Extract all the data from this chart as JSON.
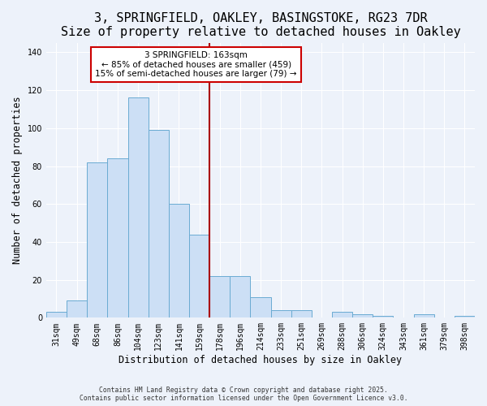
{
  "title": "3, SPRINGFIELD, OAKLEY, BASINGSTOKE, RG23 7DR",
  "subtitle": "Size of property relative to detached houses in Oakley",
  "xlabel": "Distribution of detached houses by size in Oakley",
  "ylabel": "Number of detached properties",
  "bar_labels": [
    "31sqm",
    "49sqm",
    "68sqm",
    "86sqm",
    "104sqm",
    "123sqm",
    "141sqm",
    "159sqm",
    "178sqm",
    "196sqm",
    "214sqm",
    "233sqm",
    "251sqm",
    "269sqm",
    "288sqm",
    "306sqm",
    "324sqm",
    "343sqm",
    "361sqm",
    "379sqm",
    "398sqm"
  ],
  "bar_values": [
    3,
    9,
    82,
    84,
    116,
    99,
    60,
    44,
    22,
    22,
    11,
    4,
    4,
    0,
    3,
    2,
    1,
    0,
    2,
    0,
    1
  ],
  "bar_color": "#ccdff5",
  "bar_edge_color": "#6aabd2",
  "vline_x_index": 7.5,
  "vline_color": "#aa0000",
  "annotation_title": "3 SPRINGFIELD: 163sqm",
  "annotation_line1": "← 85% of detached houses are smaller (459)",
  "annotation_line2": "15% of semi-detached houses are larger (79) →",
  "ylim": [
    0,
    145
  ],
  "yticks": [
    0,
    20,
    40,
    60,
    80,
    100,
    120,
    140
  ],
  "footer1": "Contains HM Land Registry data © Crown copyright and database right 2025.",
  "footer2": "Contains public sector information licensed under the Open Government Licence v3.0.",
  "title_fontsize": 11,
  "subtitle_fontsize": 9.5,
  "axis_fontsize": 8.5,
  "tick_fontsize": 7,
  "annot_fontsize": 7.5,
  "background_color": "#edf2fa",
  "plot_bg_color": "#edf2fa",
  "grid_color": "#ffffff"
}
